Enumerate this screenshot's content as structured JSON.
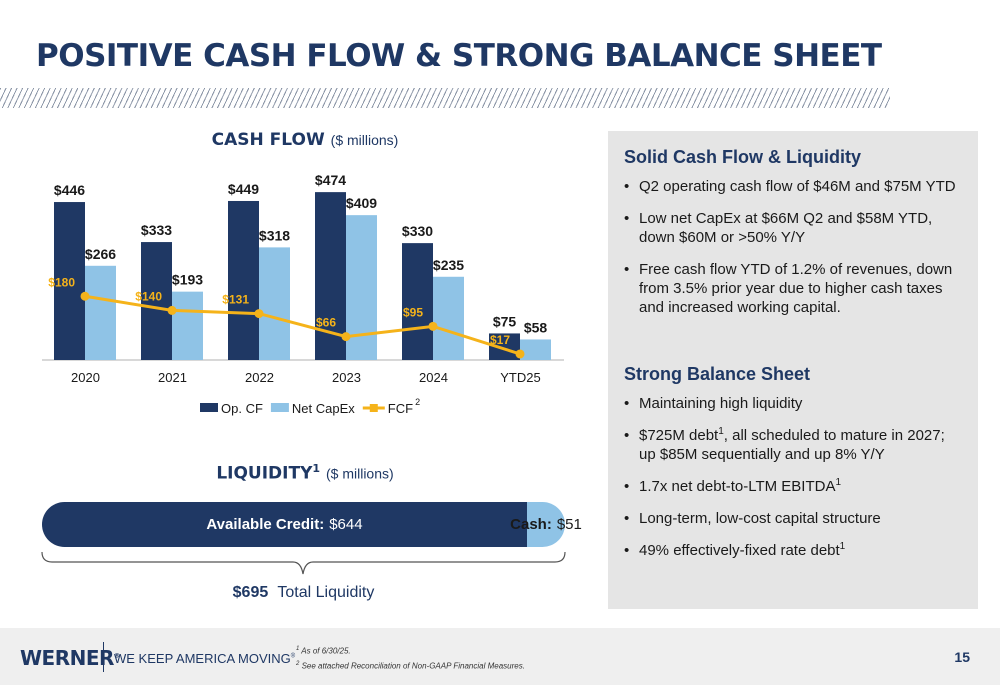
{
  "title": "POSITIVE CASH FLOW & STRONG BALANCE SHEET",
  "cashflow": {
    "title": "CASH FLOW",
    "unit": "($ millions)"
  },
  "chart_data": {
    "type": "bar",
    "title": "CASH FLOW",
    "subtitle": "($ millions)",
    "categories": [
      "2020",
      "2021",
      "2022",
      "2023",
      "2024",
      "YTD25"
    ],
    "series": [
      {
        "name": "Op. CF",
        "type": "bar",
        "color": "#1f3864",
        "values": [
          446,
          333,
          449,
          474,
          330,
          75
        ],
        "labels": [
          "$446",
          "$333",
          "$449",
          "$474",
          "$330",
          "$75"
        ]
      },
      {
        "name": "Net CapEx",
        "type": "bar",
        "color": "#8fc3e6",
        "values": [
          266,
          193,
          318,
          409,
          235,
          58
        ],
        "labels": [
          "$266",
          "$193",
          "$318",
          "$409",
          "$235",
          "$58"
        ]
      },
      {
        "name": "FCF",
        "legend_sup": "2",
        "type": "line",
        "color": "#f5b31a",
        "values": [
          180,
          140,
          131,
          66,
          95,
          17
        ],
        "labels": [
          "$180",
          "$140",
          "$131",
          "$66",
          "$95",
          "$17"
        ]
      }
    ],
    "ylim": [
      0,
      480
    ],
    "legend_position": "bottom",
    "grid": false
  },
  "liquidity": {
    "title": "LIQUIDITY",
    "title_sup": "1",
    "unit": "($ millions)",
    "credit_label": "Available Credit:",
    "credit_value": "$644",
    "credit_amount": 644,
    "cash_label": "Cash:",
    "cash_value": "$51",
    "cash_amount": 51,
    "total_value": "$695",
    "total_label": "Total Liquidity"
  },
  "panel": {
    "section1": {
      "heading": "Solid Cash Flow & Liquidity",
      "bullets": [
        "Q2 operating cash flow of $46M and $75M YTD",
        "Low net CapEx at $66M Q2 and $58M YTD, down $60M or >50% Y/Y",
        "Free cash flow YTD of 1.2% of revenues, down from 3.5% prior year due to higher cash taxes and increased working capital."
      ]
    },
    "section2": {
      "heading": "Strong Balance Sheet",
      "b1": "Maintaining high liquidity",
      "b2_a": "$725M debt",
      "b2_sup": "1",
      "b2_b": ", all scheduled to mature in 2027;",
      "b2_c": "up $85M sequentially and up 8% Y/Y",
      "b3_a": "1.7x net debt-to-LTM EBITDA",
      "b3_sup": "1",
      "b4": "Long-term, low-cost capital structure",
      "b5_a": "49% effectively-fixed rate debt",
      "b5_sup": "1"
    }
  },
  "footer": {
    "logo": "WERNER",
    "logo_mark": "®",
    "tagline": "WE KEEP AMERICA MOVING",
    "tagline_mark": "®",
    "note1_sup": "1",
    "note1": "As of 6/30/25.",
    "note2_sup": "2",
    "note2": "See attached Reconciliation of  Non-GAAP Financial Measures.",
    "page": "15"
  },
  "colors": {
    "navy": "#1f3864",
    "light_blue": "#8fc3e6",
    "gold": "#f5b31a",
    "panel_bg": "#e5e5e5"
  }
}
